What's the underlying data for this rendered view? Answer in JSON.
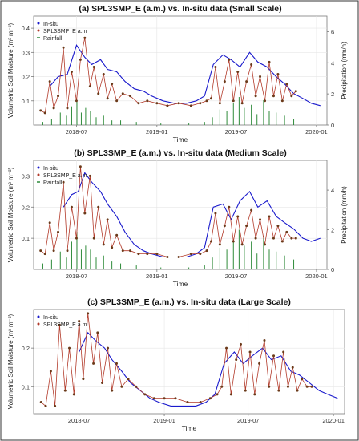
{
  "colors": {
    "insitu": "#1a1acc",
    "smap": "#b23a2a",
    "smap_point": "#6b3a1a",
    "rain": "#2e8b3a",
    "frame": "#7a7a7a",
    "grid": "#e6e6e6"
  },
  "chart_data": [
    {
      "type": "line",
      "title": "(a) SPL3SMP_E (a.m.) vs. In-situ data (Small Scale)",
      "xlabel": "Time",
      "ylabel": "Volumetric Soil Moisture (m³ m⁻³)",
      "y2label": "Precipitation (mm/h)",
      "x_ticks": [
        "2018-07",
        "2019-01",
        "2019-07",
        "2020-01"
      ],
      "y_ticks": [
        "0.1",
        "0.2",
        "0.3",
        "0.4"
      ],
      "y2_ticks": [
        "0",
        "2",
        "4",
        "6"
      ],
      "xlim": [
        "2018-03-25",
        "2020-01-25"
      ],
      "ylim": [
        0.0,
        0.45
      ],
      "y2lim": [
        0,
        7
      ],
      "legend_position": "top-left",
      "legend": [
        {
          "label": "In-situ",
          "key": "insitu"
        },
        {
          "label": "SPL3SMP_E a.m",
          "key": "smap"
        },
        {
          "label": "Rainfall",
          "key": "rain"
        }
      ],
      "series": [
        {
          "name": "In-situ",
          "key": "insitu",
          "x": [
            "2018-05-01",
            "2018-05-20",
            "2018-06-10",
            "2018-07-01",
            "2018-07-20",
            "2018-08-05",
            "2018-08-25",
            "2018-09-10",
            "2018-10-01",
            "2018-10-20",
            "2018-11-10",
            "2018-12-01",
            "2018-12-20",
            "2019-01-15",
            "2019-02-10",
            "2019-03-10",
            "2019-04-01",
            "2019-04-20",
            "2019-05-10",
            "2019-06-01",
            "2019-06-20",
            "2019-07-10",
            "2019-08-01",
            "2019-08-20",
            "2019-09-10",
            "2019-10-01",
            "2019-10-20",
            "2019-11-10",
            "2019-12-01",
            "2019-12-20",
            "2020-01-10"
          ],
          "values": [
            0.16,
            0.2,
            0.21,
            0.33,
            0.28,
            0.25,
            0.27,
            0.23,
            0.22,
            0.18,
            0.15,
            0.14,
            0.12,
            0.1,
            0.09,
            0.09,
            0.1,
            0.12,
            0.25,
            0.29,
            0.27,
            0.24,
            0.3,
            0.26,
            0.24,
            0.2,
            0.17,
            0.13,
            0.11,
            0.09,
            0.08
          ]
        },
        {
          "name": "SPL3SMP_E a.m",
          "key": "smap",
          "x": [
            "2018-04-10",
            "2018-04-20",
            "2018-05-01",
            "2018-05-10",
            "2018-05-20",
            "2018-06-01",
            "2018-06-10",
            "2018-06-20",
            "2018-07-01",
            "2018-07-10",
            "2018-07-20",
            "2018-08-01",
            "2018-08-10",
            "2018-08-20",
            "2018-09-01",
            "2018-09-10",
            "2018-09-20",
            "2018-10-01",
            "2018-10-15",
            "2018-11-01",
            "2018-11-20",
            "2018-12-10",
            "2019-01-01",
            "2019-01-25",
            "2019-02-20",
            "2019-03-20",
            "2019-04-10",
            "2019-04-25",
            "2019-05-05",
            "2019-05-15",
            "2019-05-25",
            "2019-06-05",
            "2019-06-15",
            "2019-06-25",
            "2019-07-05",
            "2019-07-15",
            "2019-07-25",
            "2019-08-05",
            "2019-08-15",
            "2019-08-25",
            "2019-09-05",
            "2019-09-15",
            "2019-09-25",
            "2019-10-05",
            "2019-10-15",
            "2019-10-25",
            "2019-11-05",
            "2019-11-15"
          ],
          "values": [
            0.06,
            0.05,
            0.18,
            0.07,
            0.12,
            0.32,
            0.07,
            0.22,
            0.1,
            0.27,
            0.36,
            0.16,
            0.24,
            0.13,
            0.21,
            0.11,
            0.17,
            0.1,
            0.13,
            0.12,
            0.09,
            0.1,
            0.09,
            0.08,
            0.09,
            0.08,
            0.09,
            0.1,
            0.11,
            0.24,
            0.09,
            0.18,
            0.27,
            0.1,
            0.22,
            0.09,
            0.18,
            0.25,
            0.12,
            0.2,
            0.1,
            0.26,
            0.12,
            0.21,
            0.1,
            0.17,
            0.12,
            0.14
          ]
        },
        {
          "name": "Rainfall",
          "key": "rain",
          "axis": "y2",
          "x": [
            "2018-04-15",
            "2018-05-05",
            "2018-05-25",
            "2018-06-08",
            "2018-06-20",
            "2018-07-02",
            "2018-07-12",
            "2018-07-22",
            "2018-08-02",
            "2018-08-15",
            "2018-09-01",
            "2018-09-20",
            "2018-10-10",
            "2018-11-15",
            "2019-01-10",
            "2019-03-15",
            "2019-04-20",
            "2019-05-08",
            "2019-05-25",
            "2019-06-10",
            "2019-06-25",
            "2019-07-08",
            "2019-07-20",
            "2019-08-05",
            "2019-08-18",
            "2019-09-02",
            "2019-09-15",
            "2019-10-01",
            "2019-10-20",
            "2019-11-10"
          ],
          "values": [
            0.2,
            0.4,
            0.8,
            0.6,
            1.2,
            1.6,
            0.8,
            1.1,
            0.9,
            0.5,
            0.6,
            0.3,
            0.3,
            0.2,
            0.1,
            0.1,
            0.2,
            0.5,
            1.0,
            0.9,
            1.4,
            1.8,
            1.1,
            1.3,
            0.7,
            1.6,
            0.9,
            0.8,
            0.6,
            0.4
          ]
        }
      ]
    },
    {
      "type": "line",
      "title": "(b) SPL3SMP_E (a.m.) vs. In-situ data (Medium Scale)",
      "xlabel": "Time",
      "ylabel": "Volumetric Soil Moisture (m³ m⁻³)",
      "y2label": "Precipitation (mm/h)",
      "x_ticks": [
        "2018-07",
        "2019-01",
        "2019-07",
        "2020-01"
      ],
      "y_ticks": [
        "0.1",
        "0.2",
        "0.3"
      ],
      "y2_ticks": [
        "0",
        "2",
        "4"
      ],
      "xlim": [
        "2018-03-25",
        "2020-01-25"
      ],
      "ylim": [
        0.0,
        0.35
      ],
      "y2lim": [
        0,
        5.5
      ],
      "legend_position": "top-left",
      "legend": [
        {
          "label": "In-situ",
          "key": "insitu"
        },
        {
          "label": "SPL3SMP_E a.m",
          "key": "smap"
        },
        {
          "label": "Rainfall",
          "key": "rain"
        }
      ],
      "series": [
        {
          "name": "In-situ",
          "key": "insitu",
          "x": [
            "2018-06-01",
            "2018-06-20",
            "2018-07-05",
            "2018-07-20",
            "2018-08-05",
            "2018-08-25",
            "2018-09-10",
            "2018-10-01",
            "2018-10-20",
            "2018-11-10",
            "2018-12-01",
            "2018-12-20",
            "2019-01-15",
            "2019-02-10",
            "2019-03-10",
            "2019-04-01",
            "2019-04-20",
            "2019-05-10",
            "2019-06-01",
            "2019-06-20",
            "2019-07-10",
            "2019-08-01",
            "2019-08-20",
            "2019-09-10",
            "2019-10-01",
            "2019-10-20",
            "2019-11-10",
            "2019-12-01",
            "2019-12-20",
            "2020-01-10"
          ],
          "values": [
            0.2,
            0.24,
            0.25,
            0.31,
            0.28,
            0.25,
            0.21,
            0.17,
            0.12,
            0.08,
            0.06,
            0.05,
            0.04,
            0.04,
            0.04,
            0.05,
            0.07,
            0.2,
            0.21,
            0.16,
            0.22,
            0.25,
            0.2,
            0.22,
            0.17,
            0.15,
            0.13,
            0.1,
            0.09,
            0.1
          ]
        },
        {
          "name": "SPL3SMP_E a.m",
          "key": "smap",
          "x": [
            "2018-04-10",
            "2018-04-20",
            "2018-05-01",
            "2018-05-10",
            "2018-05-20",
            "2018-06-01",
            "2018-06-10",
            "2018-06-20",
            "2018-07-01",
            "2018-07-10",
            "2018-07-20",
            "2018-08-01",
            "2018-08-10",
            "2018-08-20",
            "2018-09-01",
            "2018-09-10",
            "2018-09-20",
            "2018-10-01",
            "2018-10-15",
            "2018-11-01",
            "2018-11-20",
            "2018-12-10",
            "2019-01-01",
            "2019-01-25",
            "2019-02-20",
            "2019-03-20",
            "2019-04-10",
            "2019-04-25",
            "2019-05-05",
            "2019-05-15",
            "2019-05-25",
            "2019-06-05",
            "2019-06-15",
            "2019-06-25",
            "2019-07-05",
            "2019-07-15",
            "2019-07-25",
            "2019-08-05",
            "2019-08-15",
            "2019-08-25",
            "2019-09-05",
            "2019-09-15",
            "2019-09-25",
            "2019-10-05",
            "2019-10-15",
            "2019-10-25",
            "2019-11-05",
            "2019-11-15"
          ],
          "values": [
            0.06,
            0.05,
            0.15,
            0.06,
            0.12,
            0.28,
            0.06,
            0.2,
            0.1,
            0.33,
            0.18,
            0.3,
            0.1,
            0.2,
            0.08,
            0.16,
            0.07,
            0.11,
            0.06,
            0.06,
            0.05,
            0.05,
            0.05,
            0.04,
            0.04,
            0.05,
            0.05,
            0.06,
            0.09,
            0.18,
            0.08,
            0.14,
            0.2,
            0.09,
            0.17,
            0.08,
            0.14,
            0.19,
            0.1,
            0.16,
            0.08,
            0.17,
            0.1,
            0.14,
            0.09,
            0.12,
            0.1,
            0.1
          ]
        },
        {
          "name": "Rainfall",
          "key": "rain",
          "axis": "y2",
          "x": [
            "2018-04-15",
            "2018-05-05",
            "2018-05-25",
            "2018-06-08",
            "2018-06-20",
            "2018-07-02",
            "2018-07-12",
            "2018-07-22",
            "2018-08-02",
            "2018-08-15",
            "2018-09-01",
            "2018-09-20",
            "2018-10-10",
            "2018-11-15",
            "2019-01-10",
            "2019-03-15",
            "2019-04-20",
            "2019-05-08",
            "2019-05-25",
            "2019-06-10",
            "2019-06-25",
            "2019-07-08",
            "2019-07-20",
            "2019-08-05",
            "2019-08-18",
            "2019-09-02",
            "2019-09-15",
            "2019-10-01",
            "2019-10-20",
            "2019-11-10"
          ],
          "values": [
            0.3,
            0.5,
            0.9,
            0.6,
            1.4,
            1.9,
            1.0,
            1.2,
            1.0,
            0.6,
            0.7,
            0.4,
            0.3,
            0.2,
            0.1,
            0.1,
            0.2,
            0.6,
            1.1,
            1.0,
            1.5,
            2.0,
            1.2,
            1.4,
            0.8,
            1.7,
            1.0,
            0.9,
            0.7,
            0.5
          ]
        }
      ]
    },
    {
      "type": "line",
      "title": "(c) SPL3SMP_E (a.m.) vs. In-situ data (Large Scale)",
      "xlabel": "Time",
      "ylabel": "Volumetric Soil Moisture (m³ m⁻³)",
      "x_ticks": [
        "2018-07",
        "2019-01",
        "2019-07",
        "2020-01"
      ],
      "y_ticks": [
        "0.1",
        "0.2"
      ],
      "xlim": [
        "2018-03-25",
        "2020-01-25"
      ],
      "ylim": [
        0.03,
        0.3
      ],
      "legend_position": "top-left",
      "legend": [
        {
          "label": "In-situ",
          "key": "insitu"
        },
        {
          "label": "SPL3SMP_E a.m",
          "key": "smap"
        }
      ],
      "series": [
        {
          "name": "In-situ",
          "key": "insitu",
          "x": [
            "2018-07-01",
            "2018-07-20",
            "2018-08-05",
            "2018-08-25",
            "2018-09-10",
            "2018-10-01",
            "2018-10-20",
            "2018-11-10",
            "2018-12-01",
            "2018-12-20",
            "2019-01-15",
            "2019-02-10",
            "2019-03-10",
            "2019-04-01",
            "2019-04-20",
            "2019-05-10",
            "2019-06-01",
            "2019-06-20",
            "2019-07-10",
            "2019-08-01",
            "2019-08-20",
            "2019-09-10",
            "2019-10-01",
            "2019-10-20",
            "2019-11-10",
            "2019-12-01",
            "2019-12-20",
            "2020-01-10"
          ],
          "values": [
            0.19,
            0.24,
            0.22,
            0.2,
            0.17,
            0.14,
            0.11,
            0.09,
            0.07,
            0.06,
            0.05,
            0.05,
            0.05,
            0.06,
            0.08,
            0.16,
            0.19,
            0.16,
            0.18,
            0.2,
            0.17,
            0.18,
            0.14,
            0.13,
            0.11,
            0.09,
            0.08,
            0.07
          ]
        },
        {
          "name": "SPL3SMP_E a.m",
          "key": "smap",
          "x": [
            "2018-04-10",
            "2018-04-20",
            "2018-05-01",
            "2018-05-10",
            "2018-05-20",
            "2018-06-01",
            "2018-06-10",
            "2018-06-20",
            "2018-07-01",
            "2018-07-10",
            "2018-07-20",
            "2018-08-01",
            "2018-08-10",
            "2018-08-20",
            "2018-09-01",
            "2018-09-10",
            "2018-09-20",
            "2018-10-01",
            "2018-10-15",
            "2018-11-01",
            "2018-11-20",
            "2018-12-10",
            "2019-01-01",
            "2019-01-25",
            "2019-02-20",
            "2019-03-20",
            "2019-04-10",
            "2019-04-25",
            "2019-05-05",
            "2019-05-15",
            "2019-05-25",
            "2019-06-05",
            "2019-06-15",
            "2019-06-25",
            "2019-07-05",
            "2019-07-15",
            "2019-07-25",
            "2019-08-05",
            "2019-08-15",
            "2019-08-25",
            "2019-09-05",
            "2019-09-15",
            "2019-09-25",
            "2019-10-05",
            "2019-10-15",
            "2019-10-25",
            "2019-11-05",
            "2019-11-15"
          ],
          "values": [
            0.06,
            0.05,
            0.14,
            0.05,
            0.26,
            0.09,
            0.2,
            0.08,
            0.27,
            0.12,
            0.29,
            0.16,
            0.24,
            0.11,
            0.2,
            0.09,
            0.16,
            0.1,
            0.12,
            0.1,
            0.08,
            0.07,
            0.07,
            0.07,
            0.06,
            0.06,
            0.07,
            0.08,
            0.1,
            0.2,
            0.08,
            0.17,
            0.21,
            0.09,
            0.19,
            0.08,
            0.16,
            0.22,
            0.1,
            0.18,
            0.09,
            0.19,
            0.1,
            0.15,
            0.09,
            0.12,
            0.1,
            0.1
          ]
        }
      ]
    }
  ]
}
